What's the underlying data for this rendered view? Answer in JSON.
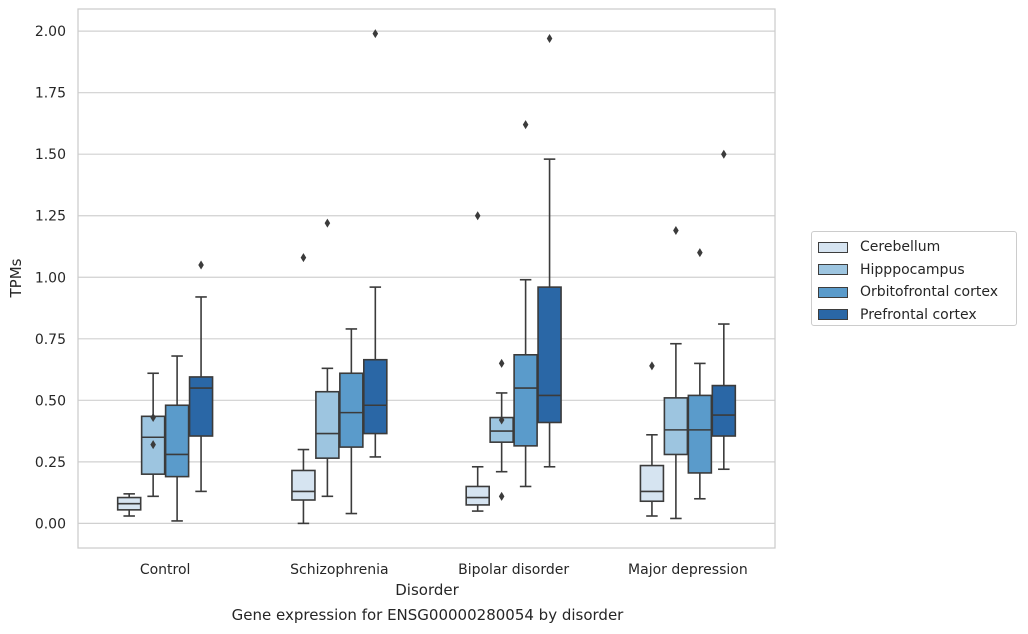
{
  "chart_data": {
    "type": "box",
    "title": "",
    "caption": "Gene expression for ENSG00000280054 by disorder",
    "xlabel": "Disorder",
    "ylabel": "TPMs",
    "ylim": [
      -0.1,
      2.09
    ],
    "yticks": [
      "0.00",
      "0.25",
      "0.50",
      "0.75",
      "1.00",
      "1.25",
      "1.50",
      "1.75",
      "2.00"
    ],
    "ytick_values": [
      0,
      0.25,
      0.5,
      0.75,
      1.0,
      1.25,
      1.5,
      1.75,
      2.0
    ],
    "grid": true,
    "legend_position": "right",
    "categories": [
      "Control",
      "Schizophrenia",
      "Bipolar disorder",
      "Major depression"
    ],
    "series": [
      {
        "name": "Cerebellum",
        "color": "#d6e4f1",
        "boxes": [
          {
            "whisker_low": 0.03,
            "q1": 0.055,
            "median": 0.08,
            "q3": 0.105,
            "whisker_high": 0.12,
            "outliers": []
          },
          {
            "whisker_low": 0.0,
            "q1": 0.095,
            "median": 0.13,
            "q3": 0.215,
            "whisker_high": 0.3,
            "outliers": [
              1.08
            ]
          },
          {
            "whisker_low": 0.05,
            "q1": 0.075,
            "median": 0.105,
            "q3": 0.15,
            "whisker_high": 0.23,
            "outliers": [
              1.25
            ]
          },
          {
            "whisker_low": 0.03,
            "q1": 0.09,
            "median": 0.13,
            "q3": 0.235,
            "whisker_high": 0.36,
            "outliers": [
              0.64
            ]
          }
        ]
      },
      {
        "name": "Hipppocampus",
        "color": "#9dc5e0",
        "boxes": [
          {
            "whisker_low": 0.11,
            "q1": 0.2,
            "median": 0.35,
            "q3": 0.435,
            "whisker_high": 0.61,
            "outliers": [
              0.43,
              0.32
            ]
          },
          {
            "whisker_low": 0.11,
            "q1": 0.265,
            "median": 0.365,
            "q3": 0.535,
            "whisker_high": 0.63,
            "outliers": [
              1.22
            ]
          },
          {
            "whisker_low": 0.21,
            "q1": 0.33,
            "median": 0.375,
            "q3": 0.43,
            "whisker_high": 0.53,
            "outliers": [
              0.65,
              0.42,
              0.11
            ]
          },
          {
            "whisker_low": 0.02,
            "q1": 0.28,
            "median": 0.38,
            "q3": 0.51,
            "whisker_high": 0.73,
            "outliers": [
              1.19
            ]
          }
        ]
      },
      {
        "name": "Orbitofrontal cortex",
        "color": "#5a9bcb",
        "boxes": [
          {
            "whisker_low": 0.01,
            "q1": 0.19,
            "median": 0.28,
            "q3": 0.48,
            "whisker_high": 0.68,
            "outliers": []
          },
          {
            "whisker_low": 0.04,
            "q1": 0.31,
            "median": 0.45,
            "q3": 0.61,
            "whisker_high": 0.79,
            "outliers": []
          },
          {
            "whisker_low": 0.15,
            "q1": 0.315,
            "median": 0.55,
            "q3": 0.685,
            "whisker_high": 0.99,
            "outliers": [
              1.62
            ]
          },
          {
            "whisker_low": 0.1,
            "q1": 0.205,
            "median": 0.38,
            "q3": 0.52,
            "whisker_high": 0.65,
            "outliers": [
              1.1
            ]
          }
        ]
      },
      {
        "name": "Prefrontal cortex",
        "color": "#2a67a6",
        "boxes": [
          {
            "whisker_low": 0.13,
            "q1": 0.355,
            "median": 0.55,
            "q3": 0.595,
            "whisker_high": 0.92,
            "outliers": [
              1.05
            ]
          },
          {
            "whisker_low": 0.27,
            "q1": 0.365,
            "median": 0.48,
            "q3": 0.665,
            "whisker_high": 0.96,
            "outliers": [
              1.99
            ]
          },
          {
            "whisker_low": 0.23,
            "q1": 0.41,
            "median": 0.52,
            "q3": 0.96,
            "whisker_high": 1.48,
            "outliers": [
              1.97
            ]
          },
          {
            "whisker_low": 0.22,
            "q1": 0.355,
            "median": 0.44,
            "q3": 0.56,
            "whisker_high": 0.81,
            "outliers": [
              1.5
            ]
          }
        ]
      }
    ]
  }
}
